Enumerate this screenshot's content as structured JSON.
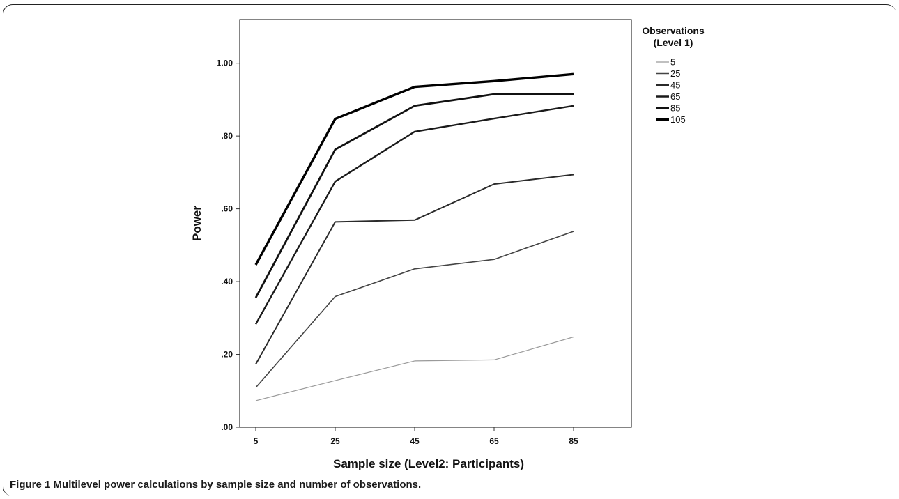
{
  "caption": {
    "label": "Figure 1",
    "text": "Multilevel power calculations by sample size and number of observations."
  },
  "chart_data": {
    "type": "line",
    "xlabel": "Sample size (Level2: Participants)",
    "ylabel": "Power",
    "x": [
      5,
      25,
      45,
      65,
      85
    ],
    "x_tick_labels": [
      "5",
      "25",
      "45",
      "65",
      "85"
    ],
    "y_tick_values": [
      0.0,
      0.2,
      0.4,
      0.6,
      0.8,
      1.0
    ],
    "y_tick_labels": [
      ".00",
      ".20",
      ".40",
      ".60",
      ".80",
      "1.00"
    ],
    "ylim": [
      0.0,
      1.12
    ],
    "legend": {
      "title_line1": "Observations",
      "title_line2": "(Level 1)",
      "placement": "right"
    },
    "series": [
      {
        "name": "5",
        "values": [
          0.073,
          0.128,
          0.182,
          0.185,
          0.248
        ],
        "color": "#9a9a9a"
      },
      {
        "name": "25",
        "values": [
          0.109,
          0.359,
          0.435,
          0.461,
          0.538
        ],
        "color": "#444444"
      },
      {
        "name": "45",
        "values": [
          0.173,
          0.564,
          0.569,
          0.668,
          0.694
        ],
        "color": "#2a2a2a"
      },
      {
        "name": "65",
        "values": [
          0.283,
          0.675,
          0.812,
          0.848,
          0.883
        ],
        "color": "#1a1a1a"
      },
      {
        "name": "85",
        "values": [
          0.356,
          0.763,
          0.883,
          0.915,
          0.916
        ],
        "color": "#111111"
      },
      {
        "name": "105",
        "values": [
          0.446,
          0.847,
          0.935,
          0.951,
          0.97
        ],
        "color": "#000000"
      }
    ]
  }
}
